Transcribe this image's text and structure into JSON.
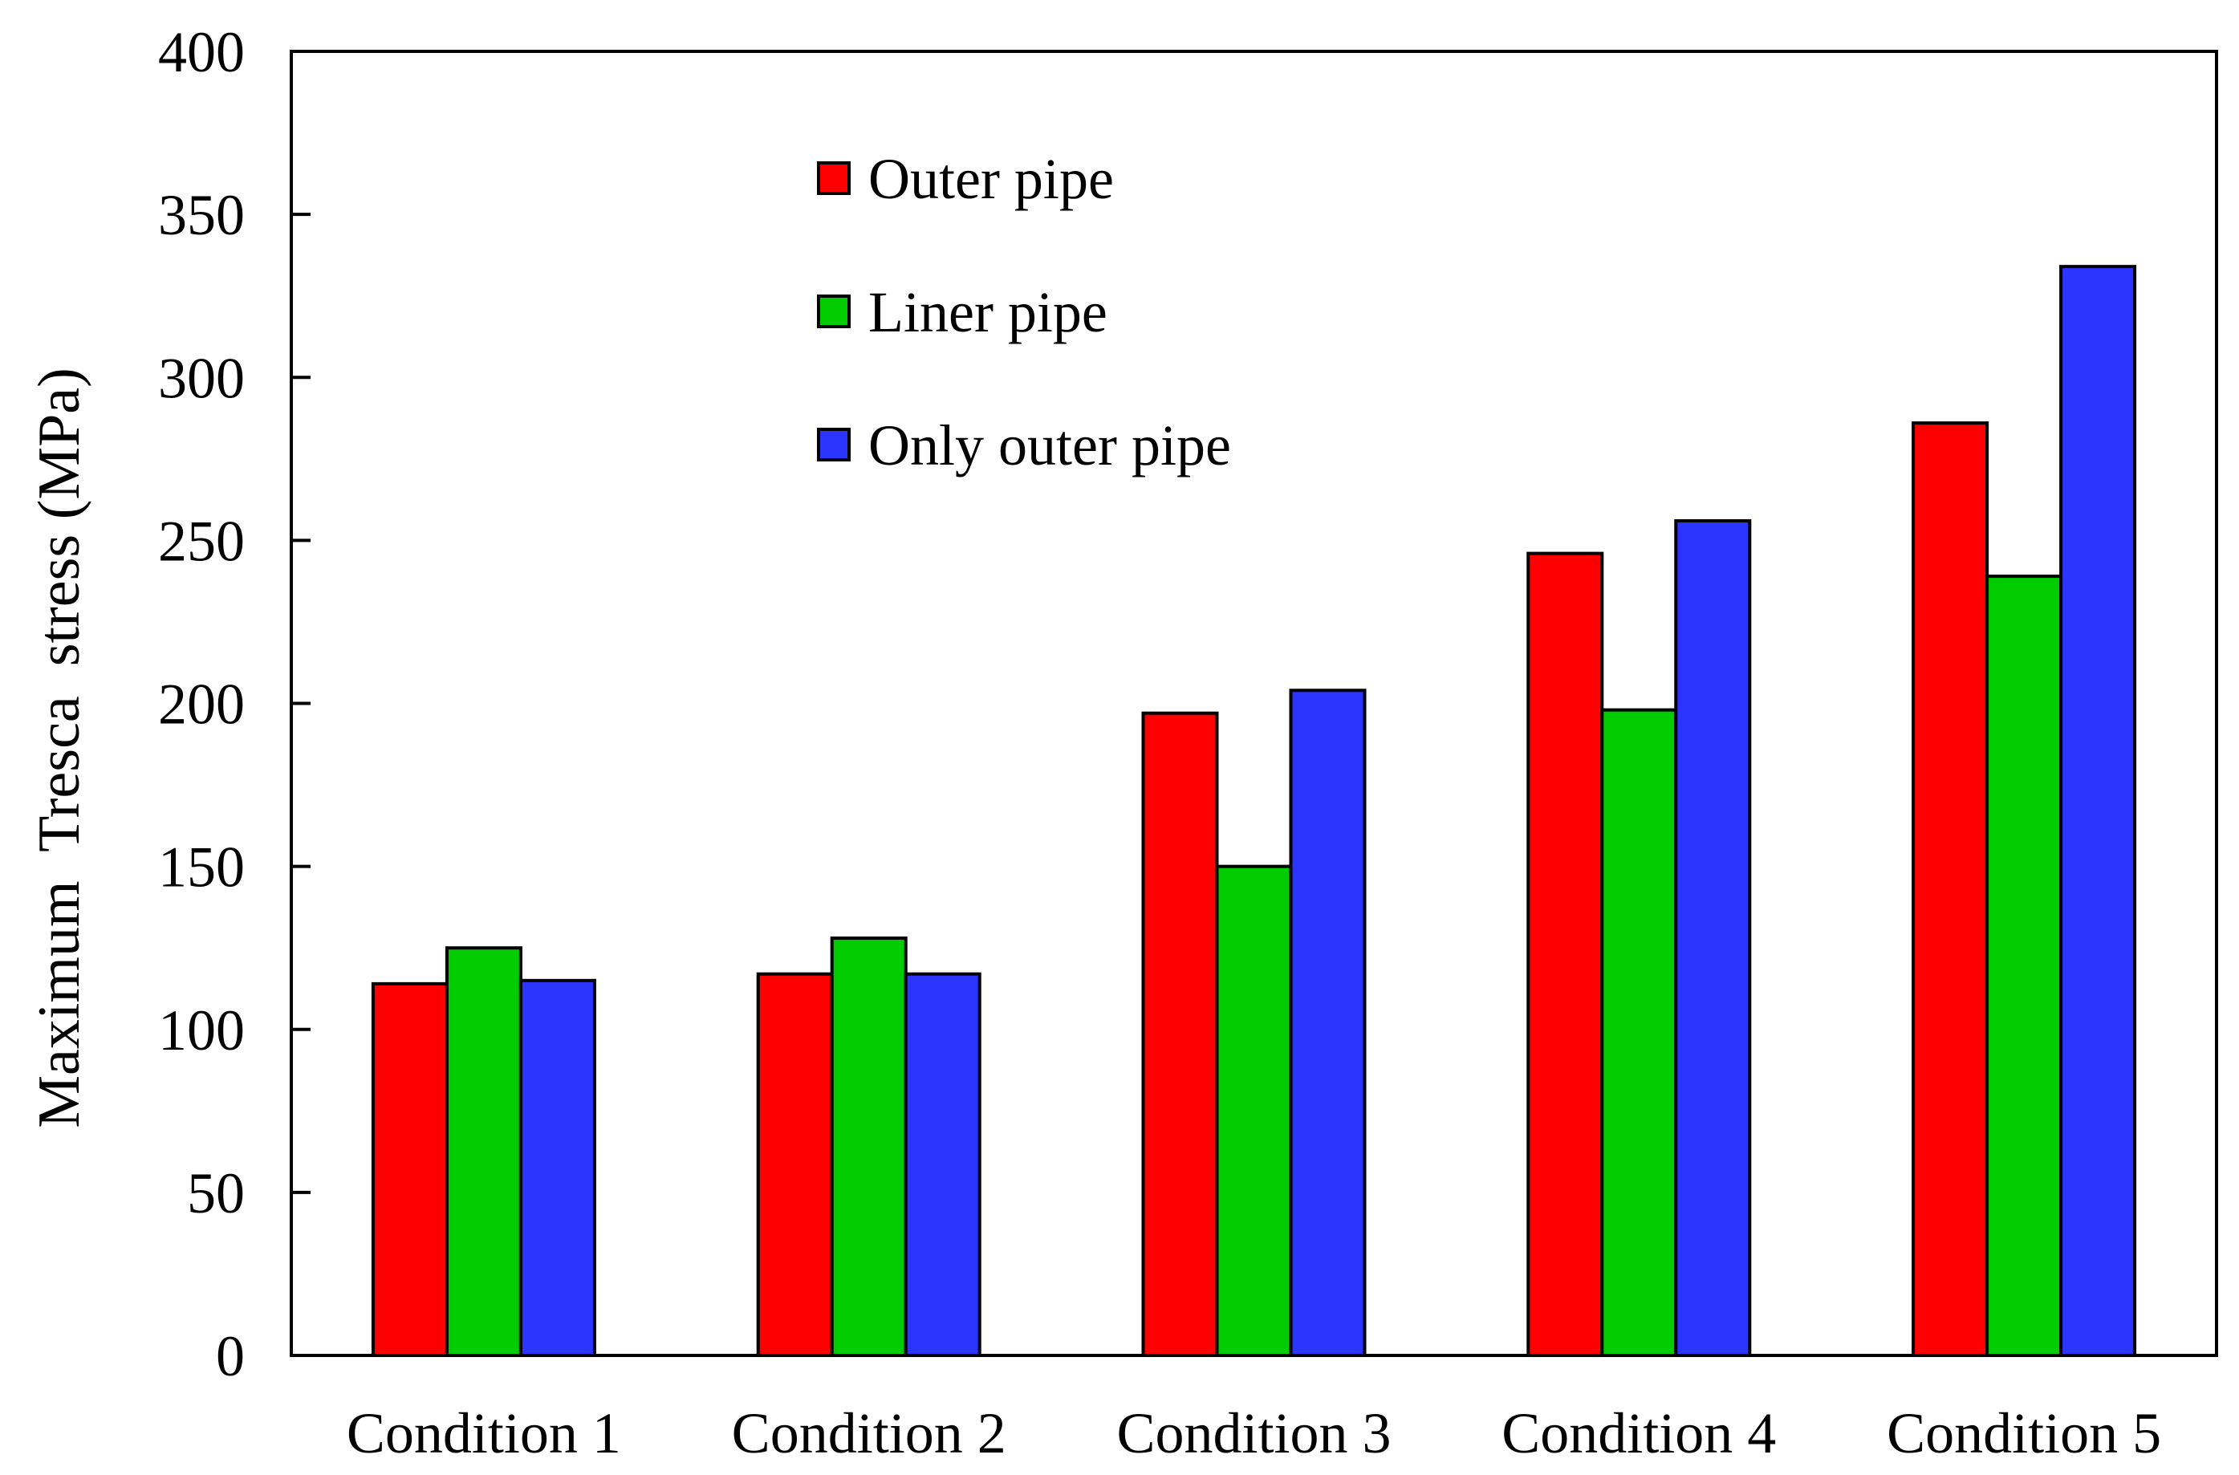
{
  "chart_data": {
    "type": "bar",
    "title": "",
    "xlabel": "",
    "ylabel": "Maximum  Tresca  stress (MPa)",
    "categories": [
      "Condition 1",
      "Condition 2",
      "Condition 3",
      "Condition 4",
      "Condition 5"
    ],
    "series": [
      {
        "name": "Outer pipe",
        "color": "#ff0000",
        "values": [
          114,
          117,
          197,
          246,
          286
        ]
      },
      {
        "name": "Liner pipe",
        "color": "#00cc00",
        "values": [
          125,
          128,
          150,
          198,
          239
        ]
      },
      {
        "name": "Only outer pipe",
        "color": "#2b35ff",
        "values": [
          115,
          117,
          204,
          256,
          334
        ]
      }
    ],
    "ylim": [
      0,
      400
    ],
    "yticks": [
      0,
      50,
      100,
      150,
      200,
      250,
      300,
      350,
      400
    ],
    "grid": false,
    "legend_position": "top-center"
  }
}
